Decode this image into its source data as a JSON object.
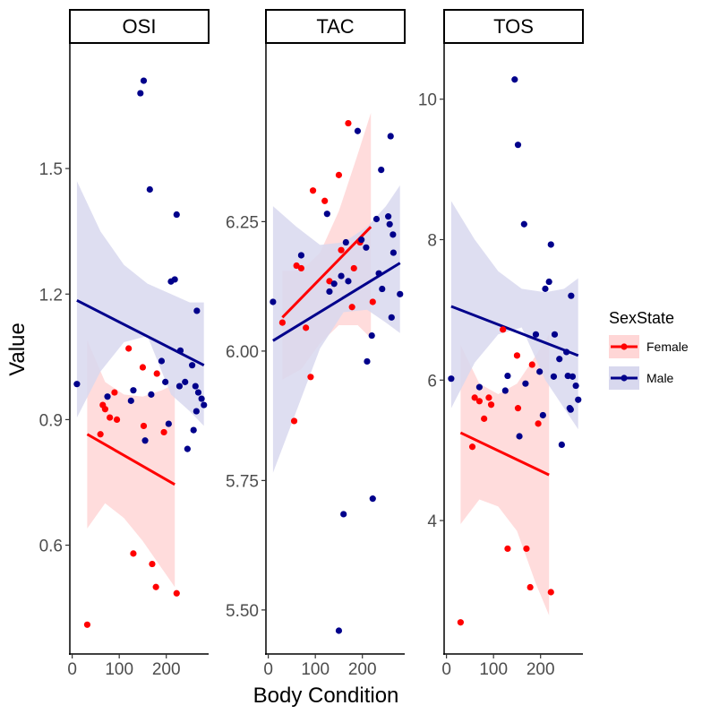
{
  "chart_data": {
    "type": "scatter",
    "figure": {
      "xlabel": "Body Condition",
      "ylabel": "Value",
      "legend": {
        "title": "SexState",
        "position": "right",
        "entries": [
          {
            "name": "Female",
            "color": "#ff0000",
            "band": "#ffd6d6"
          },
          {
            "name": "Male",
            "color": "#00008b",
            "band": "#d8d8ee"
          }
        ]
      }
    },
    "xlim": [
      -5,
      290
    ],
    "xticks": [
      0,
      100,
      200
    ],
    "xtick_labels": [
      "0",
      "100",
      "200"
    ],
    "panels": [
      {
        "title": "OSI",
        "ylim": [
          0.34,
          1.8
        ],
        "yticks": [
          0.6,
          0.9,
          1.2,
          1.5
        ],
        "ytick_labels": [
          "0.6",
          "0.9",
          "1.2",
          "1.5"
        ],
        "series": [
          {
            "name": "Female",
            "points": [
              [
                32,
                0.41
              ],
              [
                60,
                0.865
              ],
              [
                65,
                0.935
              ],
              [
                70,
                0.925
              ],
              [
                80,
                0.905
              ],
              [
                90,
                0.965
              ],
              [
                95,
                0.9
              ],
              [
                120,
                1.07
              ],
              [
                130,
                0.58
              ],
              [
                150,
                1.025
              ],
              [
                152,
                0.885
              ],
              [
                170,
                0.555
              ],
              [
                178,
                0.5
              ],
              [
                180,
                1.01
              ],
              [
                195,
                0.87
              ],
              [
                222,
                0.485
              ]
            ],
            "fit": {
              "x": [
                32,
                218
              ],
              "y": [
                0.865,
                0.745
              ]
            },
            "band": {
              "x": [
                32,
                70,
                110,
                150,
                190,
                218
              ],
              "upper": [
                1.09,
                0.99,
                0.96,
                0.955,
                0.97,
                0.985
              ],
              "lower": [
                0.64,
                0.7,
                0.665,
                0.61,
                0.545,
                0.5
              ]
            }
          },
          {
            "name": "Male",
            "points": [
              [
                10,
                0.985
              ],
              [
                75,
                0.955
              ],
              [
                125,
                0.945
              ],
              [
                130,
                0.97
              ],
              [
                145,
                1.68
              ],
              [
                152,
                1.71
              ],
              [
                155,
                0.85
              ],
              [
                165,
                1.45
              ],
              [
                168,
                0.96
              ],
              [
                190,
                1.04
              ],
              [
                198,
                0.99
              ],
              [
                205,
                0.89
              ],
              [
                210,
                1.23
              ],
              [
                218,
                1.235
              ],
              [
                222,
                1.39
              ],
              [
                228,
                0.98
              ],
              [
                230,
                1.065
              ],
              [
                240,
                0.99
              ],
              [
                245,
                0.83
              ],
              [
                255,
                1.03
              ],
              [
                258,
                0.875
              ],
              [
                262,
                0.98
              ],
              [
                264,
                0.92
              ],
              [
                265,
                1.16
              ],
              [
                268,
                0.965
              ],
              [
                275,
                0.95
              ],
              [
                280,
                0.935
              ]
            ],
            "fit": {
              "x": [
                10,
                280
              ],
              "y": [
                1.185,
                1.03
              ]
            },
            "band": {
              "x": [
                10,
                60,
                110,
                160,
                210,
                250,
                280
              ],
              "upper": [
                1.47,
                1.35,
                1.27,
                1.225,
                1.2,
                1.18,
                1.18
              ],
              "lower": [
                0.905,
                1.015,
                1.085,
                1.1,
                0.96,
                0.92,
                0.885
              ]
            }
          }
        ]
      },
      {
        "title": "TAC",
        "ylim": [
          5.415,
          6.595
        ],
        "yticks": [
          5.5,
          5.75,
          6.0,
          6.25
        ],
        "ytick_labels": [
          "5.50",
          "5.75",
          "6.00",
          "6.25"
        ],
        "series": [
          {
            "name": "Female",
            "points": [
              [
                30,
                6.055
              ],
              [
                55,
                5.865
              ],
              [
                60,
                6.165
              ],
              [
                70,
                6.16
              ],
              [
                80,
                6.045
              ],
              [
                90,
                5.95
              ],
              [
                95,
                6.31
              ],
              [
                120,
                6.29
              ],
              [
                130,
                6.135
              ],
              [
                150,
                6.34
              ],
              [
                155,
                6.195
              ],
              [
                170,
                6.44
              ],
              [
                178,
                6.085
              ],
              [
                182,
                6.16
              ],
              [
                195,
                6.21
              ],
              [
                222,
                6.095
              ]
            ],
            "fit": {
              "x": [
                30,
                218
              ],
              "y": [
                6.065,
                6.24
              ]
            },
            "band": {
              "x": [
                30,
                70,
                110,
                150,
                190,
                218
              ],
              "upper": [
                6.155,
                6.155,
                6.19,
                6.27,
                6.38,
                6.46
              ],
              "lower": [
                5.945,
                5.965,
                6.015,
                6.05,
                6.05,
                6.025
              ]
            }
          },
          {
            "name": "Male",
            "points": [
              [
                10,
                6.095
              ],
              [
                70,
                6.185
              ],
              [
                125,
                6.265
              ],
              [
                130,
                6.115
              ],
              [
                140,
                6.13
              ],
              [
                150,
                5.46
              ],
              [
                155,
                6.145
              ],
              [
                160,
                5.685
              ],
              [
                165,
                6.21
              ],
              [
                170,
                6.135
              ],
              [
                190,
                6.425
              ],
              [
                198,
                6.215
              ],
              [
                208,
                6.2
              ],
              [
                210,
                5.98
              ],
              [
                220,
                6.03
              ],
              [
                222,
                5.715
              ],
              [
                230,
                6.255
              ],
              [
                235,
                6.15
              ],
              [
                240,
                6.35
              ],
              [
                242,
                6.12
              ],
              [
                255,
                6.26
              ],
              [
                258,
                6.245
              ],
              [
                260,
                6.415
              ],
              [
                262,
                6.065
              ],
              [
                265,
                6.225
              ],
              [
                266,
                6.19
              ],
              [
                280,
                6.11
              ]
            ],
            "fit": {
              "x": [
                10,
                280
              ],
              "y": [
                6.02,
                6.17
              ]
            },
            "band": {
              "x": [
                10,
                60,
                110,
                160,
                210,
                250,
                280
              ],
              "upper": [
                6.28,
                6.24,
                6.205,
                6.21,
                6.24,
                6.28,
                6.32
              ],
              "lower": [
                5.765,
                5.885,
                6.005,
                6.075,
                6.08,
                6.055,
                6.035
              ]
            }
          }
        ]
      },
      {
        "title": "TOS",
        "ylim": [
          2.1,
          10.8
        ],
        "yticks": [
          4,
          6,
          8,
          10
        ],
        "ytick_labels": [
          "4",
          "6",
          "8",
          "10"
        ],
        "series": [
          {
            "name": "Female",
            "points": [
              [
                30,
                2.55
              ],
              [
                55,
                5.05
              ],
              [
                60,
                5.75
              ],
              [
                70,
                5.7
              ],
              [
                80,
                5.45
              ],
              [
                90,
                5.75
              ],
              [
                95,
                5.65
              ],
              [
                120,
                6.72
              ],
              [
                130,
                3.6
              ],
              [
                150,
                6.35
              ],
              [
                152,
                5.6
              ],
              [
                170,
                3.6
              ],
              [
                178,
                3.05
              ],
              [
                182,
                6.22
              ],
              [
                195,
                5.38
              ],
              [
                222,
                2.98
              ]
            ],
            "fit": {
              "x": [
                30,
                218
              ],
              "y": [
                5.25,
                4.65
              ]
            },
            "band": {
              "x": [
                30,
                70,
                110,
                150,
                190,
                218
              ],
              "upper": [
                6.5,
                5.95,
                5.8,
                5.95,
                6.35,
                6.65
              ],
              "lower": [
                3.95,
                4.3,
                4.2,
                3.85,
                3.1,
                2.65
              ]
            }
          },
          {
            "name": "Male",
            "points": [
              [
                10,
                6.02
              ],
              [
                70,
                5.9
              ],
              [
                125,
                5.85
              ],
              [
                130,
                6.06
              ],
              [
                145,
                10.28
              ],
              [
                152,
                9.35
              ],
              [
                155,
                5.2
              ],
              [
                165,
                8.22
              ],
              [
                168,
                5.95
              ],
              [
                190,
                6.65
              ],
              [
                198,
                6.12
              ],
              [
                205,
                5.5
              ],
              [
                210,
                7.3
              ],
              [
                218,
                7.4
              ],
              [
                222,
                7.93
              ],
              [
                228,
                6.05
              ],
              [
                230,
                6.65
              ],
              [
                240,
                6.3
              ],
              [
                245,
                5.08
              ],
              [
                255,
                6.4
              ],
              [
                258,
                6.06
              ],
              [
                262,
                5.6
              ],
              [
                264,
                5.58
              ],
              [
                265,
                7.2
              ],
              [
                268,
                6.05
              ],
              [
                275,
                5.92
              ],
              [
                280,
                5.72
              ]
            ],
            "fit": {
              "x": [
                10,
                280
              ],
              "y": [
                7.05,
                6.35
              ]
            },
            "band": {
              "x": [
                10,
                60,
                110,
                160,
                210,
                250,
                280
              ],
              "upper": [
                8.55,
                8.0,
                7.55,
                7.3,
                7.25,
                7.3,
                7.45
              ],
              "lower": [
                5.6,
                6.25,
                6.65,
                6.75,
                6.0,
                5.6,
                5.3
              ]
            }
          }
        ]
      }
    ]
  }
}
